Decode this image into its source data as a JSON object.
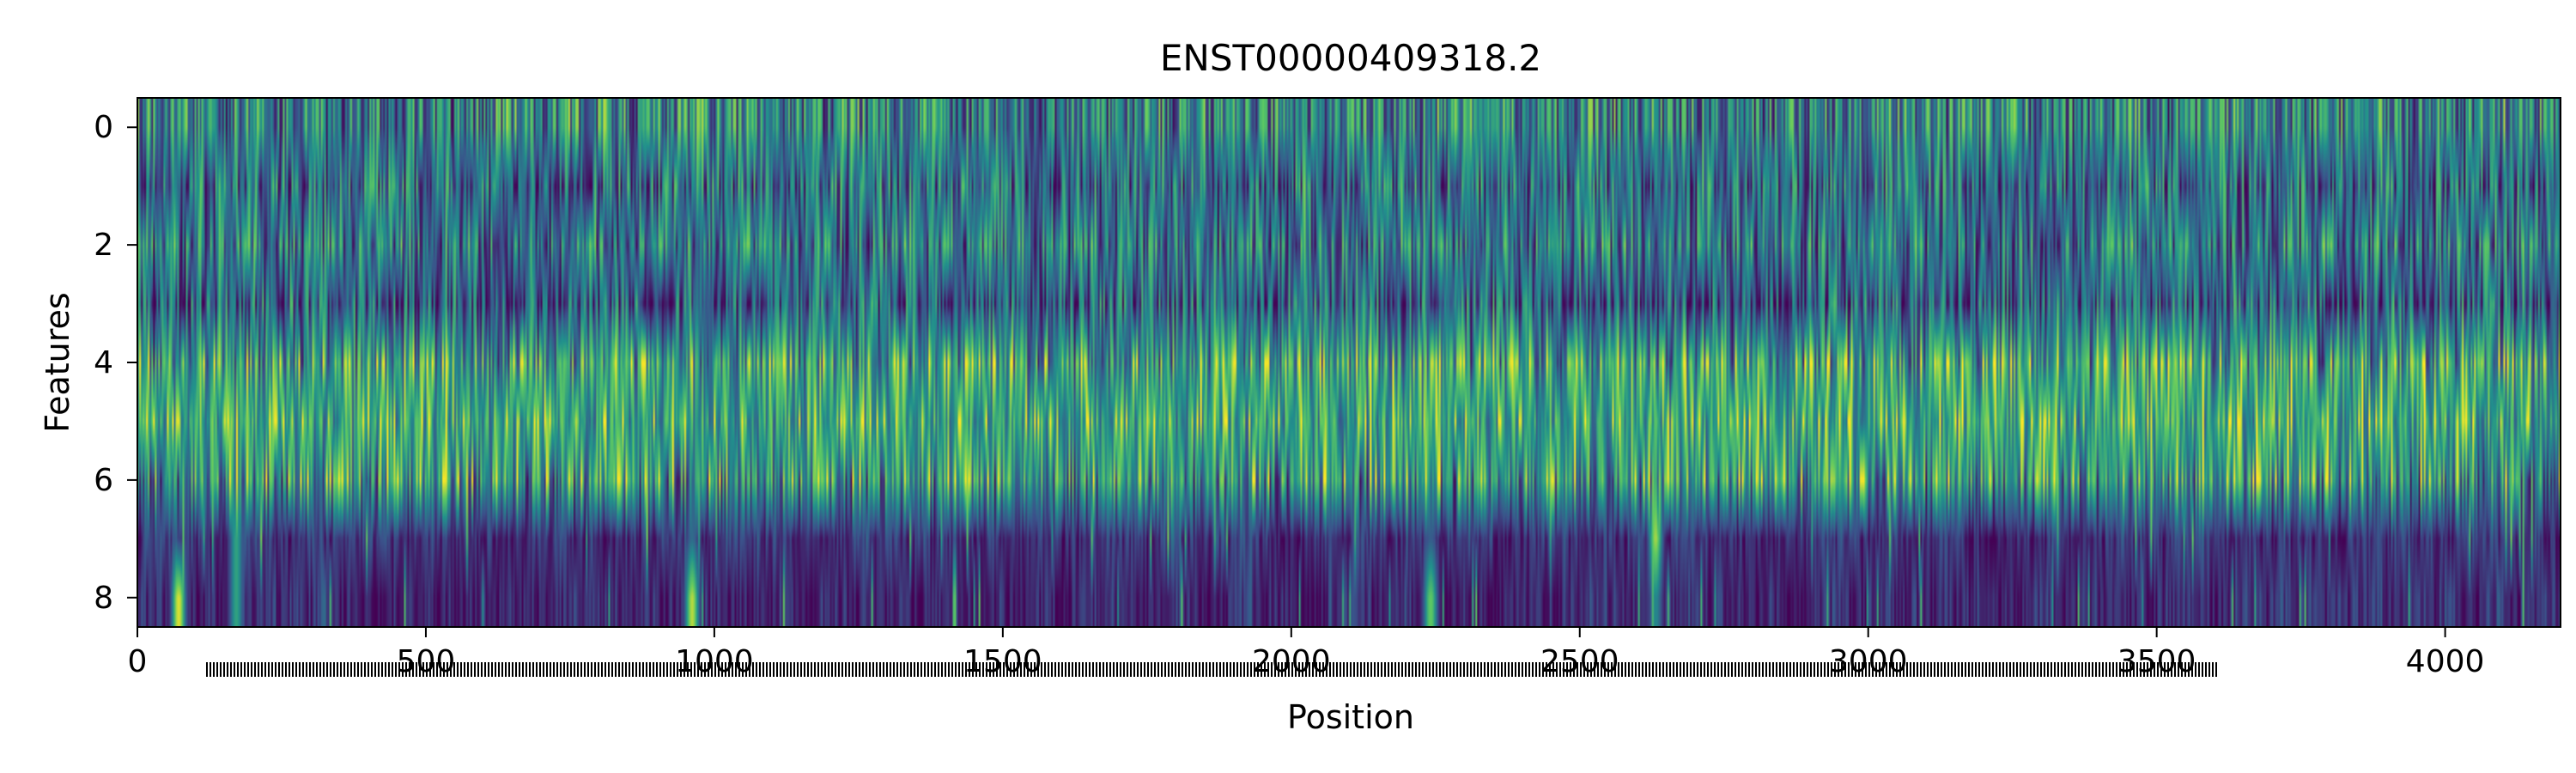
{
  "chart_data": {
    "type": "heatmap",
    "title": "ENST00000409318.2",
    "xlabel": "Position",
    "ylabel": "Features",
    "xlim": [
      0,
      4200
    ],
    "ylim": [
      8.5,
      -0.5
    ],
    "x_ticks": [
      0,
      500,
      1000,
      1500,
      2000,
      2500,
      3000,
      3500,
      4000
    ],
    "y_ticks": [
      0,
      2,
      4,
      6,
      8
    ],
    "x_tick_labels": [
      "0",
      "500",
      "1000",
      "1500",
      "2000",
      "2500",
      "3000",
      "3500",
      "4000"
    ],
    "y_tick_labels": [
      "0",
      "2",
      "4",
      "6",
      "8"
    ],
    "rows": 9,
    "columns": 4200,
    "colormap": "viridis",
    "grid": false,
    "legend": "none",
    "row_profiles": [
      {
        "feature": 0,
        "mean_intensity": 0.45,
        "variability": "high"
      },
      {
        "feature": 1,
        "mean_intensity": 0.35,
        "variability": "high"
      },
      {
        "feature": 2,
        "mean_intensity": 0.4,
        "variability": "high"
      },
      {
        "feature": 3,
        "mean_intensity": 0.3,
        "variability": "high"
      },
      {
        "feature": 4,
        "mean_intensity": 0.5,
        "variability": "high"
      },
      {
        "feature": 5,
        "mean_intensity": 0.55,
        "variability": "medium"
      },
      {
        "feature": 6,
        "mean_intensity": 0.45,
        "variability": "high"
      },
      {
        "feature": 7,
        "mean_intensity": 0.15,
        "variability": "low"
      },
      {
        "feature": 8,
        "mean_intensity": 0.12,
        "variability": "low"
      }
    ],
    "hotspots": [
      {
        "x": 70,
        "y": 8,
        "value": 0.95
      },
      {
        "x": 170,
        "y": 7.5,
        "value": 0.85
      },
      {
        "x": 960,
        "y": 7.8,
        "value": 0.95
      },
      {
        "x": 2240,
        "y": 7.8,
        "value": 0.8
      },
      {
        "x": 2630,
        "y": 7.3,
        "value": 1.0
      },
      {
        "x": 3120,
        "y": 4,
        "value": 0.9
      }
    ]
  }
}
